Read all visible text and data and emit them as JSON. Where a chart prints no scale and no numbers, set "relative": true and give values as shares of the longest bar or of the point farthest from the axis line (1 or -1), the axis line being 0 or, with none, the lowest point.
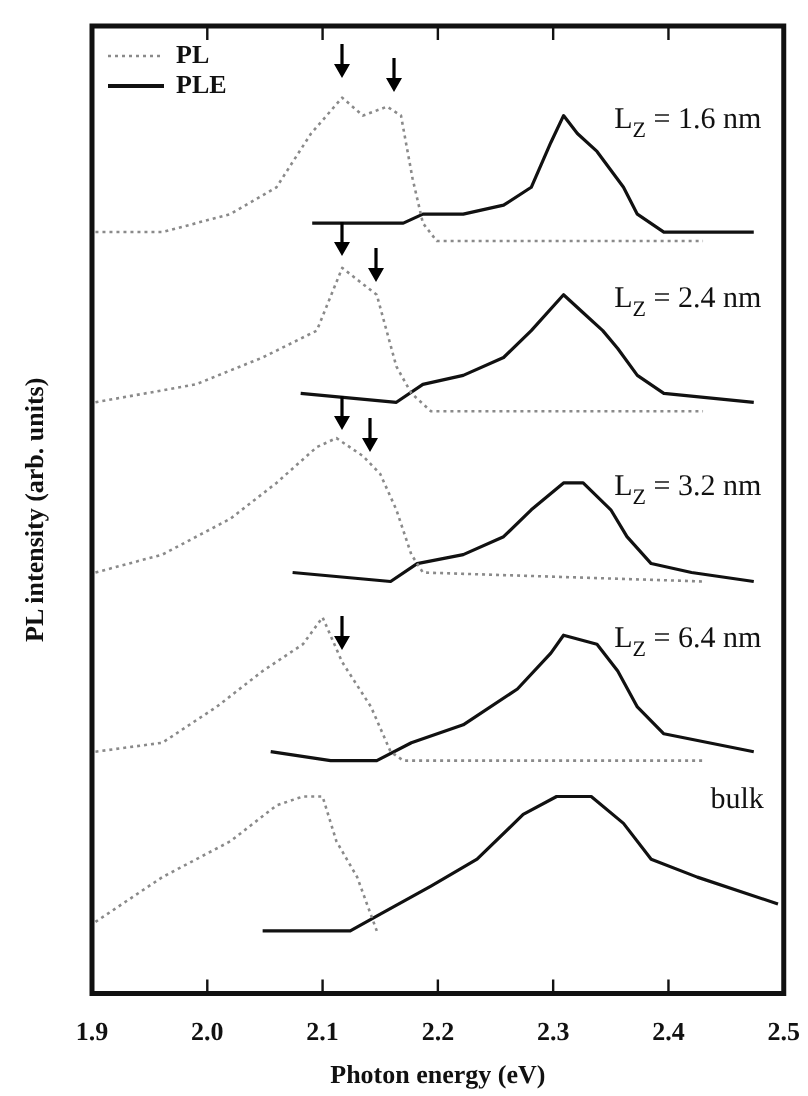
{
  "chart_data": {
    "type": "line",
    "relative": true,
    "xlabel": "Photon energy (eV)",
    "ylabel": "PL intensity (arb. units)",
    "xlim": [
      1.9,
      2.5
    ],
    "xticks": [
      {
        "value": 1.9,
        "label": "1.9"
      },
      {
        "value": 2.0,
        "label": "2.0"
      },
      {
        "value": 2.1,
        "label": "2.1"
      },
      {
        "value": 2.2,
        "label": "2.2"
      },
      {
        "value": 2.3,
        "label": "2.3"
      },
      {
        "value": 2.4,
        "label": "2.4"
      },
      {
        "value": 2.5,
        "label": "2.5"
      }
    ],
    "legend": "top left",
    "series": [
      {
        "name": "PL",
        "color": "#8a8a8a",
        "line_style": "dotted",
        "x": [
          1.903,
          1.961,
          2.02,
          2.06,
          2.09,
          2.117,
          2.135,
          2.156,
          2.168,
          2.178,
          2.187,
          2.199,
          2.43
        ],
        "values": [
          0.85,
          0.85,
          0.87,
          0.9,
          0.96,
          1.0,
          0.98,
          0.99,
          0.98,
          0.91,
          0.86,
          0.84,
          0.84
        ]
      },
      {
        "name": "PLE",
        "color": "#111111",
        "line_style": "solid",
        "x": [
          2.091,
          2.17,
          2.187,
          2.222,
          2.257,
          2.281,
          2.298,
          2.309,
          2.321,
          2.338,
          2.361,
          2.373,
          2.396,
          2.474
        ],
        "values": [
          0.86,
          0.86,
          0.87,
          0.87,
          0.88,
          0.9,
          0.95,
          0.98,
          0.96,
          0.94,
          0.9,
          0.87,
          0.85,
          0.85
        ]
      },
      {
        "color": "#8a8a8a",
        "line_style": "dotted",
        "x": [
          1.903,
          1.99,
          2.048,
          2.095,
          2.117,
          2.147,
          2.164,
          2.177,
          2.194,
          2.43
        ],
        "values": [
          0.66,
          0.68,
          0.71,
          0.74,
          0.81,
          0.78,
          0.7,
          0.67,
          0.65,
          0.65
        ]
      },
      {
        "color": "#111111",
        "line_style": "solid",
        "x": [
          2.081,
          2.164,
          2.187,
          2.222,
          2.257,
          2.281,
          2.309,
          2.326,
          2.343,
          2.356,
          2.373,
          2.396,
          2.474
        ],
        "values": [
          0.67,
          0.66,
          0.68,
          0.69,
          0.71,
          0.74,
          0.78,
          0.76,
          0.74,
          0.72,
          0.69,
          0.67,
          0.66
        ]
      },
      {
        "color": "#8a8a8a",
        "line_style": "dotted",
        "x": [
          1.903,
          1.961,
          2.02,
          2.06,
          2.095,
          2.112,
          2.135,
          2.15,
          2.164,
          2.177,
          2.187,
          2.43
        ],
        "values": [
          0.47,
          0.49,
          0.53,
          0.57,
          0.61,
          0.62,
          0.6,
          0.58,
          0.54,
          0.49,
          0.47,
          0.46
        ]
      },
      {
        "color": "#111111",
        "line_style": "solid",
        "x": [
          2.074,
          2.159,
          2.182,
          2.222,
          2.257,
          2.281,
          2.309,
          2.326,
          2.35,
          2.364,
          2.385,
          2.42,
          2.474
        ],
        "values": [
          0.47,
          0.46,
          0.48,
          0.49,
          0.51,
          0.54,
          0.57,
          0.57,
          0.54,
          0.51,
          0.48,
          0.47,
          0.46
        ]
      },
      {
        "color": "#8a8a8a",
        "line_style": "dotted",
        "x": [
          1.903,
          1.961,
          2.008,
          2.048,
          2.083,
          2.1,
          2.117,
          2.142,
          2.159,
          2.17,
          2.43
        ],
        "values": [
          0.27,
          0.28,
          0.32,
          0.36,
          0.39,
          0.42,
          0.37,
          0.32,
          0.27,
          0.26,
          0.26
        ]
      },
      {
        "color": "#111111",
        "line_style": "solid",
        "x": [
          2.055,
          2.107,
          2.147,
          2.177,
          2.222,
          2.269,
          2.298,
          2.309,
          2.338,
          2.356,
          2.373,
          2.396,
          2.474
        ],
        "values": [
          0.27,
          0.26,
          0.26,
          0.28,
          0.3,
          0.34,
          0.38,
          0.4,
          0.39,
          0.36,
          0.32,
          0.29,
          0.27
        ]
      },
      {
        "color": "#8a8a8a",
        "line_style": "dotted",
        "x": [
          1.903,
          1.961,
          2.02,
          2.06,
          2.083,
          2.1,
          2.112,
          2.13,
          2.147
        ],
        "values": [
          0.08,
          0.13,
          0.17,
          0.21,
          0.22,
          0.22,
          0.17,
          0.13,
          0.07
        ]
      },
      {
        "color": "#111111",
        "line_style": "solid",
        "x": [
          2.048,
          2.077,
          2.124,
          2.152,
          2.194,
          2.234,
          2.274,
          2.303,
          2.333,
          2.361,
          2.385,
          2.425,
          2.495
        ],
        "values": [
          0.07,
          0.07,
          0.07,
          0.09,
          0.12,
          0.15,
          0.2,
          0.22,
          0.22,
          0.19,
          0.15,
          0.13,
          0.1
        ]
      }
    ],
    "annotations": [
      "L$_{Z}$ = 1.6 nm",
      "L$_{Z}$ = 2.4 nm",
      "L$_{Z}$ = 3.2 nm",
      "L$_{Z}$ = 6.4 nm",
      "bulk"
    ]
  }
}
